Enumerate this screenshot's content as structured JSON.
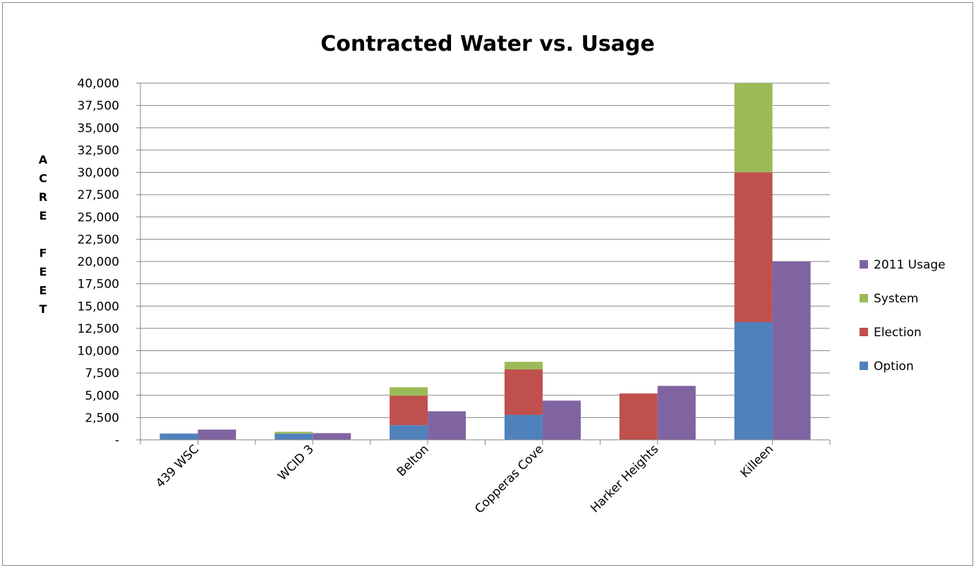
{
  "chart_data": {
    "type": "bar",
    "title": "Contracted Water vs. Usage",
    "ylabel": "ACRE FEET",
    "ylabel_letters": [
      "A",
      "C",
      "R",
      "E",
      "",
      "F",
      "E",
      "E",
      "T"
    ],
    "xlabel": "",
    "ylim": [
      0,
      40000
    ],
    "y_ticks": [
      {
        "value": 0,
        "label": "-"
      },
      {
        "value": 2500,
        "label": "2,500"
      },
      {
        "value": 5000,
        "label": "5,000"
      },
      {
        "value": 7500,
        "label": "7,500"
      },
      {
        "value": 10000,
        "label": "10,000"
      },
      {
        "value": 12500,
        "label": "12,500"
      },
      {
        "value": 15000,
        "label": "15,000"
      },
      {
        "value": 17500,
        "label": "17,500"
      },
      {
        "value": 20000,
        "label": "20,000"
      },
      {
        "value": 22500,
        "label": "22,500"
      },
      {
        "value": 25000,
        "label": "25,000"
      },
      {
        "value": 27500,
        "label": "27,500"
      },
      {
        "value": 30000,
        "label": "30,000"
      },
      {
        "value": 32500,
        "label": "32,500"
      },
      {
        "value": 35000,
        "label": "35,000"
      },
      {
        "value": 37500,
        "label": "37,500"
      },
      {
        "value": 40000,
        "label": "40,000"
      }
    ],
    "grid": true,
    "legend_position": "right",
    "categories": [
      "439 WSC",
      "WCID 3",
      "Belton",
      "Copperas Cove",
      "Harker Heights",
      "Killeen"
    ],
    "stacked_series": [
      {
        "name": "Option",
        "color": "#4F81BD",
        "values": [
          700,
          700,
          1650,
          2800,
          0,
          13200
        ]
      },
      {
        "name": "Election",
        "color": "#C0504D",
        "values": [
          0,
          0,
          3300,
          5100,
          5200,
          16800
        ]
      },
      {
        "name": "System",
        "color": "#9BBB59",
        "values": [
          0,
          200,
          950,
          850,
          0,
          10000
        ]
      }
    ],
    "usage_series": {
      "name": "2011 Usage",
      "color": "#8064A2",
      "values": [
        1150,
        750,
        3200,
        4400,
        6050,
        20000
      ]
    },
    "legend_order": [
      "2011 Usage",
      "System",
      "Election",
      "Option"
    ]
  }
}
